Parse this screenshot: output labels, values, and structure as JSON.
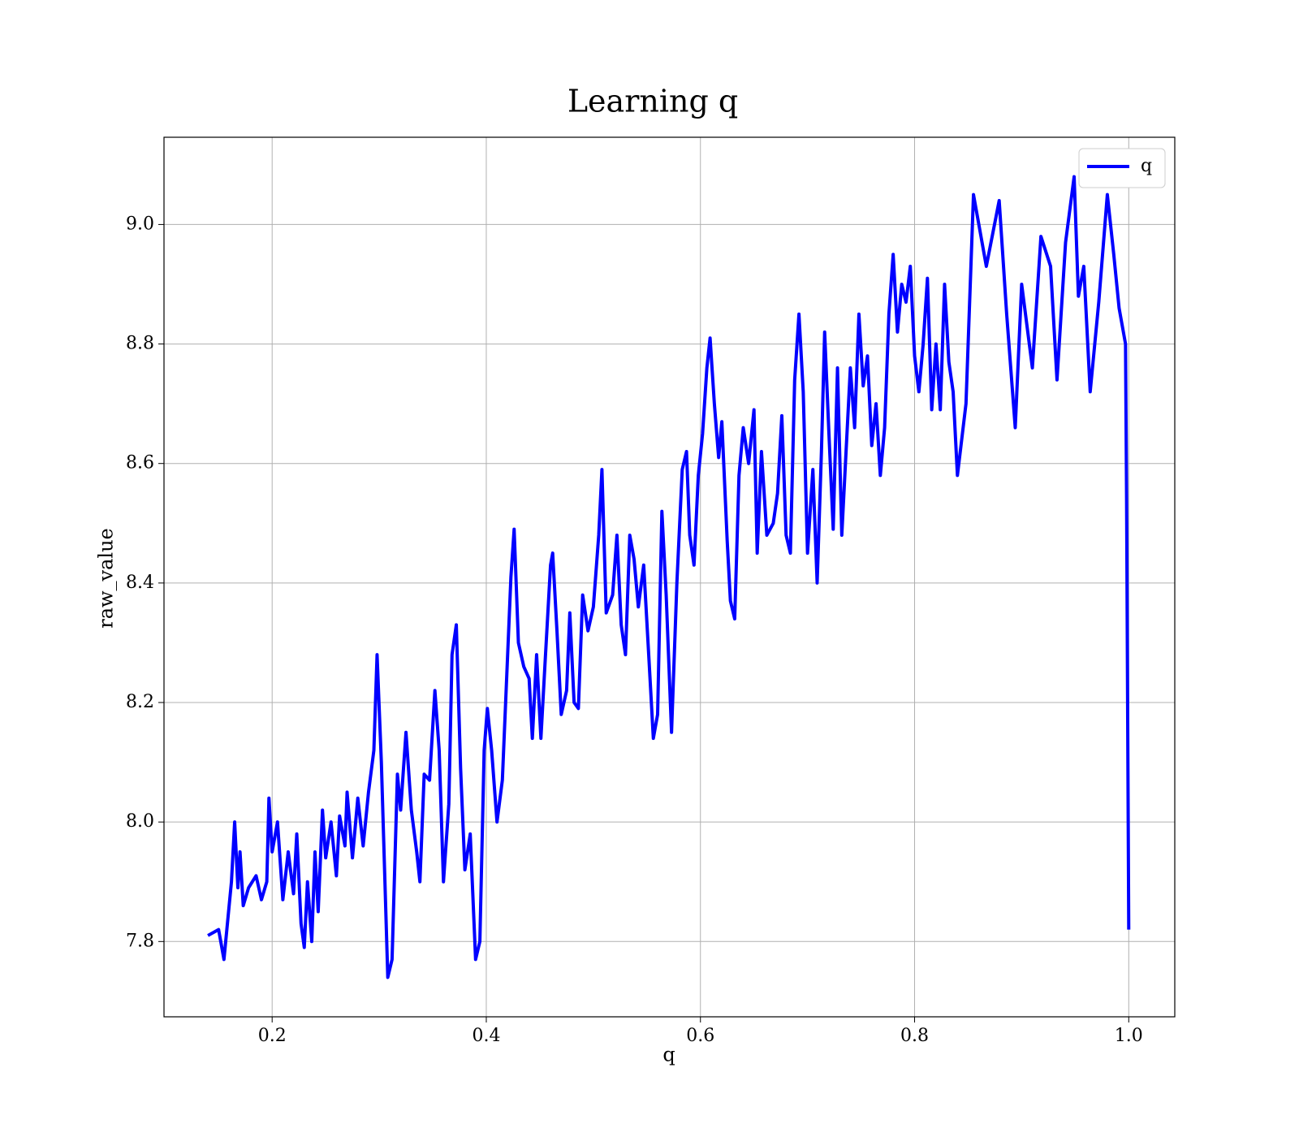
{
  "chart_data": {
    "type": "line",
    "title": "Learning q",
    "xlabel": "q",
    "ylabel": "raw_value",
    "x": [
      0.14,
      0.15,
      0.155,
      0.162,
      0.165,
      0.168,
      0.17,
      0.173,
      0.178,
      0.185,
      0.19,
      0.195,
      0.197,
      0.2,
      0.205,
      0.21,
      0.215,
      0.22,
      0.223,
      0.227,
      0.23,
      0.233,
      0.237,
      0.24,
      0.243,
      0.247,
      0.25,
      0.255,
      0.26,
      0.263,
      0.268,
      0.27,
      0.275,
      0.28,
      0.285,
      0.29,
      0.295,
      0.298,
      0.302,
      0.308,
      0.312,
      0.317,
      0.32,
      0.325,
      0.33,
      0.335,
      0.338,
      0.342,
      0.347,
      0.352,
      0.356,
      0.36,
      0.365,
      0.368,
      0.372,
      0.376,
      0.38,
      0.385,
      0.39,
      0.394,
      0.398,
      0.401,
      0.405,
      0.41,
      0.415,
      0.419,
      0.423,
      0.426,
      0.43,
      0.435,
      0.44,
      0.443,
      0.447,
      0.451,
      0.455,
      0.46,
      0.462,
      0.466,
      0.47,
      0.475,
      0.478,
      0.482,
      0.486,
      0.49,
      0.495,
      0.5,
      0.505,
      0.508,
      0.512,
      0.518,
      0.522,
      0.526,
      0.53,
      0.534,
      0.538,
      0.542,
      0.547,
      0.552,
      0.556,
      0.56,
      0.564,
      0.568,
      0.573,
      0.578,
      0.583,
      0.587,
      0.59,
      0.594,
      0.598,
      0.602,
      0.606,
      0.609,
      0.613,
      0.617,
      0.62,
      0.625,
      0.628,
      0.632,
      0.636,
      0.64,
      0.645,
      0.65,
      0.653,
      0.657,
      0.662,
      0.668,
      0.672,
      0.676,
      0.68,
      0.684,
      0.688,
      0.692,
      0.696,
      0.7,
      0.705,
      0.709,
      0.713,
      0.716,
      0.72,
      0.724,
      0.728,
      0.732,
      0.736,
      0.74,
      0.744,
      0.748,
      0.752,
      0.756,
      0.76,
      0.764,
      0.768,
      0.772,
      0.776,
      0.78,
      0.784,
      0.788,
      0.792,
      0.796,
      0.8,
      0.804,
      0.808,
      0.812,
      0.816,
      0.82,
      0.824,
      0.828,
      0.832,
      0.836,
      0.84,
      0.848,
      0.855,
      0.867,
      0.879,
      0.886,
      0.894,
      0.9,
      0.91,
      0.918,
      0.927,
      0.933,
      0.941,
      0.949,
      0.953,
      0.958,
      0.964,
      0.972,
      0.98,
      0.986,
      0.991,
      0.997,
      0.998,
      1.0
    ],
    "series": [
      {
        "name": "q",
        "color": "#0000ff",
        "values": [
          7.81,
          7.82,
          7.77,
          7.9,
          8.0,
          7.89,
          7.95,
          7.86,
          7.89,
          7.91,
          7.87,
          7.9,
          8.04,
          7.95,
          8.0,
          7.87,
          7.95,
          7.88,
          7.98,
          7.83,
          7.79,
          7.9,
          7.8,
          7.95,
          7.85,
          8.02,
          7.94,
          8.0,
          7.91,
          8.01,
          7.96,
          8.05,
          7.94,
          8.04,
          7.96,
          8.05,
          8.12,
          8.28,
          8.1,
          7.74,
          7.77,
          8.08,
          8.02,
          8.15,
          8.02,
          7.95,
          7.9,
          8.08,
          8.07,
          8.22,
          8.12,
          7.9,
          8.03,
          8.28,
          8.33,
          8.09,
          7.92,
          7.98,
          7.77,
          7.8,
          8.12,
          8.19,
          8.12,
          8.0,
          8.07,
          8.24,
          8.41,
          8.49,
          8.3,
          8.26,
          8.24,
          8.14,
          8.28,
          8.14,
          8.27,
          8.43,
          8.45,
          8.32,
          8.18,
          8.22,
          8.35,
          8.2,
          8.19,
          8.38,
          8.32,
          8.36,
          8.48,
          8.59,
          8.35,
          8.38,
          8.48,
          8.33,
          8.28,
          8.48,
          8.44,
          8.36,
          8.43,
          8.27,
          8.14,
          8.18,
          8.52,
          8.38,
          8.15,
          8.4,
          8.59,
          8.62,
          8.48,
          8.43,
          8.58,
          8.65,
          8.76,
          8.81,
          8.7,
          8.61,
          8.67,
          8.47,
          8.37,
          8.34,
          8.58,
          8.66,
          8.6,
          8.69,
          8.45,
          8.62,
          8.48,
          8.5,
          8.55,
          8.68,
          8.48,
          8.45,
          8.74,
          8.85,
          8.72,
          8.45,
          8.59,
          8.4,
          8.62,
          8.82,
          8.65,
          8.49,
          8.76,
          8.48,
          8.62,
          8.76,
          8.66,
          8.85,
          8.73,
          8.78,
          8.63,
          8.7,
          8.58,
          8.66,
          8.85,
          8.95,
          8.82,
          8.9,
          8.87,
          8.93,
          8.78,
          8.72,
          8.8,
          8.91,
          8.69,
          8.8,
          8.69,
          8.9,
          8.77,
          8.72,
          8.58,
          8.7,
          9.05,
          8.93,
          9.04,
          8.85,
          8.66,
          8.9,
          8.76,
          8.98,
          8.93,
          8.74,
          8.97,
          9.08,
          8.88,
          8.93,
          8.72,
          8.87,
          9.05,
          8.95,
          8.86,
          8.8,
          8.54,
          7.82
        ]
      }
    ],
    "xlim": [
      0.099,
      1.043
    ],
    "ylim": [
      7.674,
      9.146
    ],
    "xticks": [
      0.2,
      0.4,
      0.6,
      0.8,
      {
        "value": 1,
        "label": "1.0"
      }
    ],
    "yticks": [
      7.8,
      {
        "value": 8,
        "label": "8.0"
      },
      8.2,
      8.4,
      8.6,
      8.8,
      {
        "value": 9,
        "label": "9.0"
      }
    ],
    "grid": true,
    "legend": "upper right"
  }
}
